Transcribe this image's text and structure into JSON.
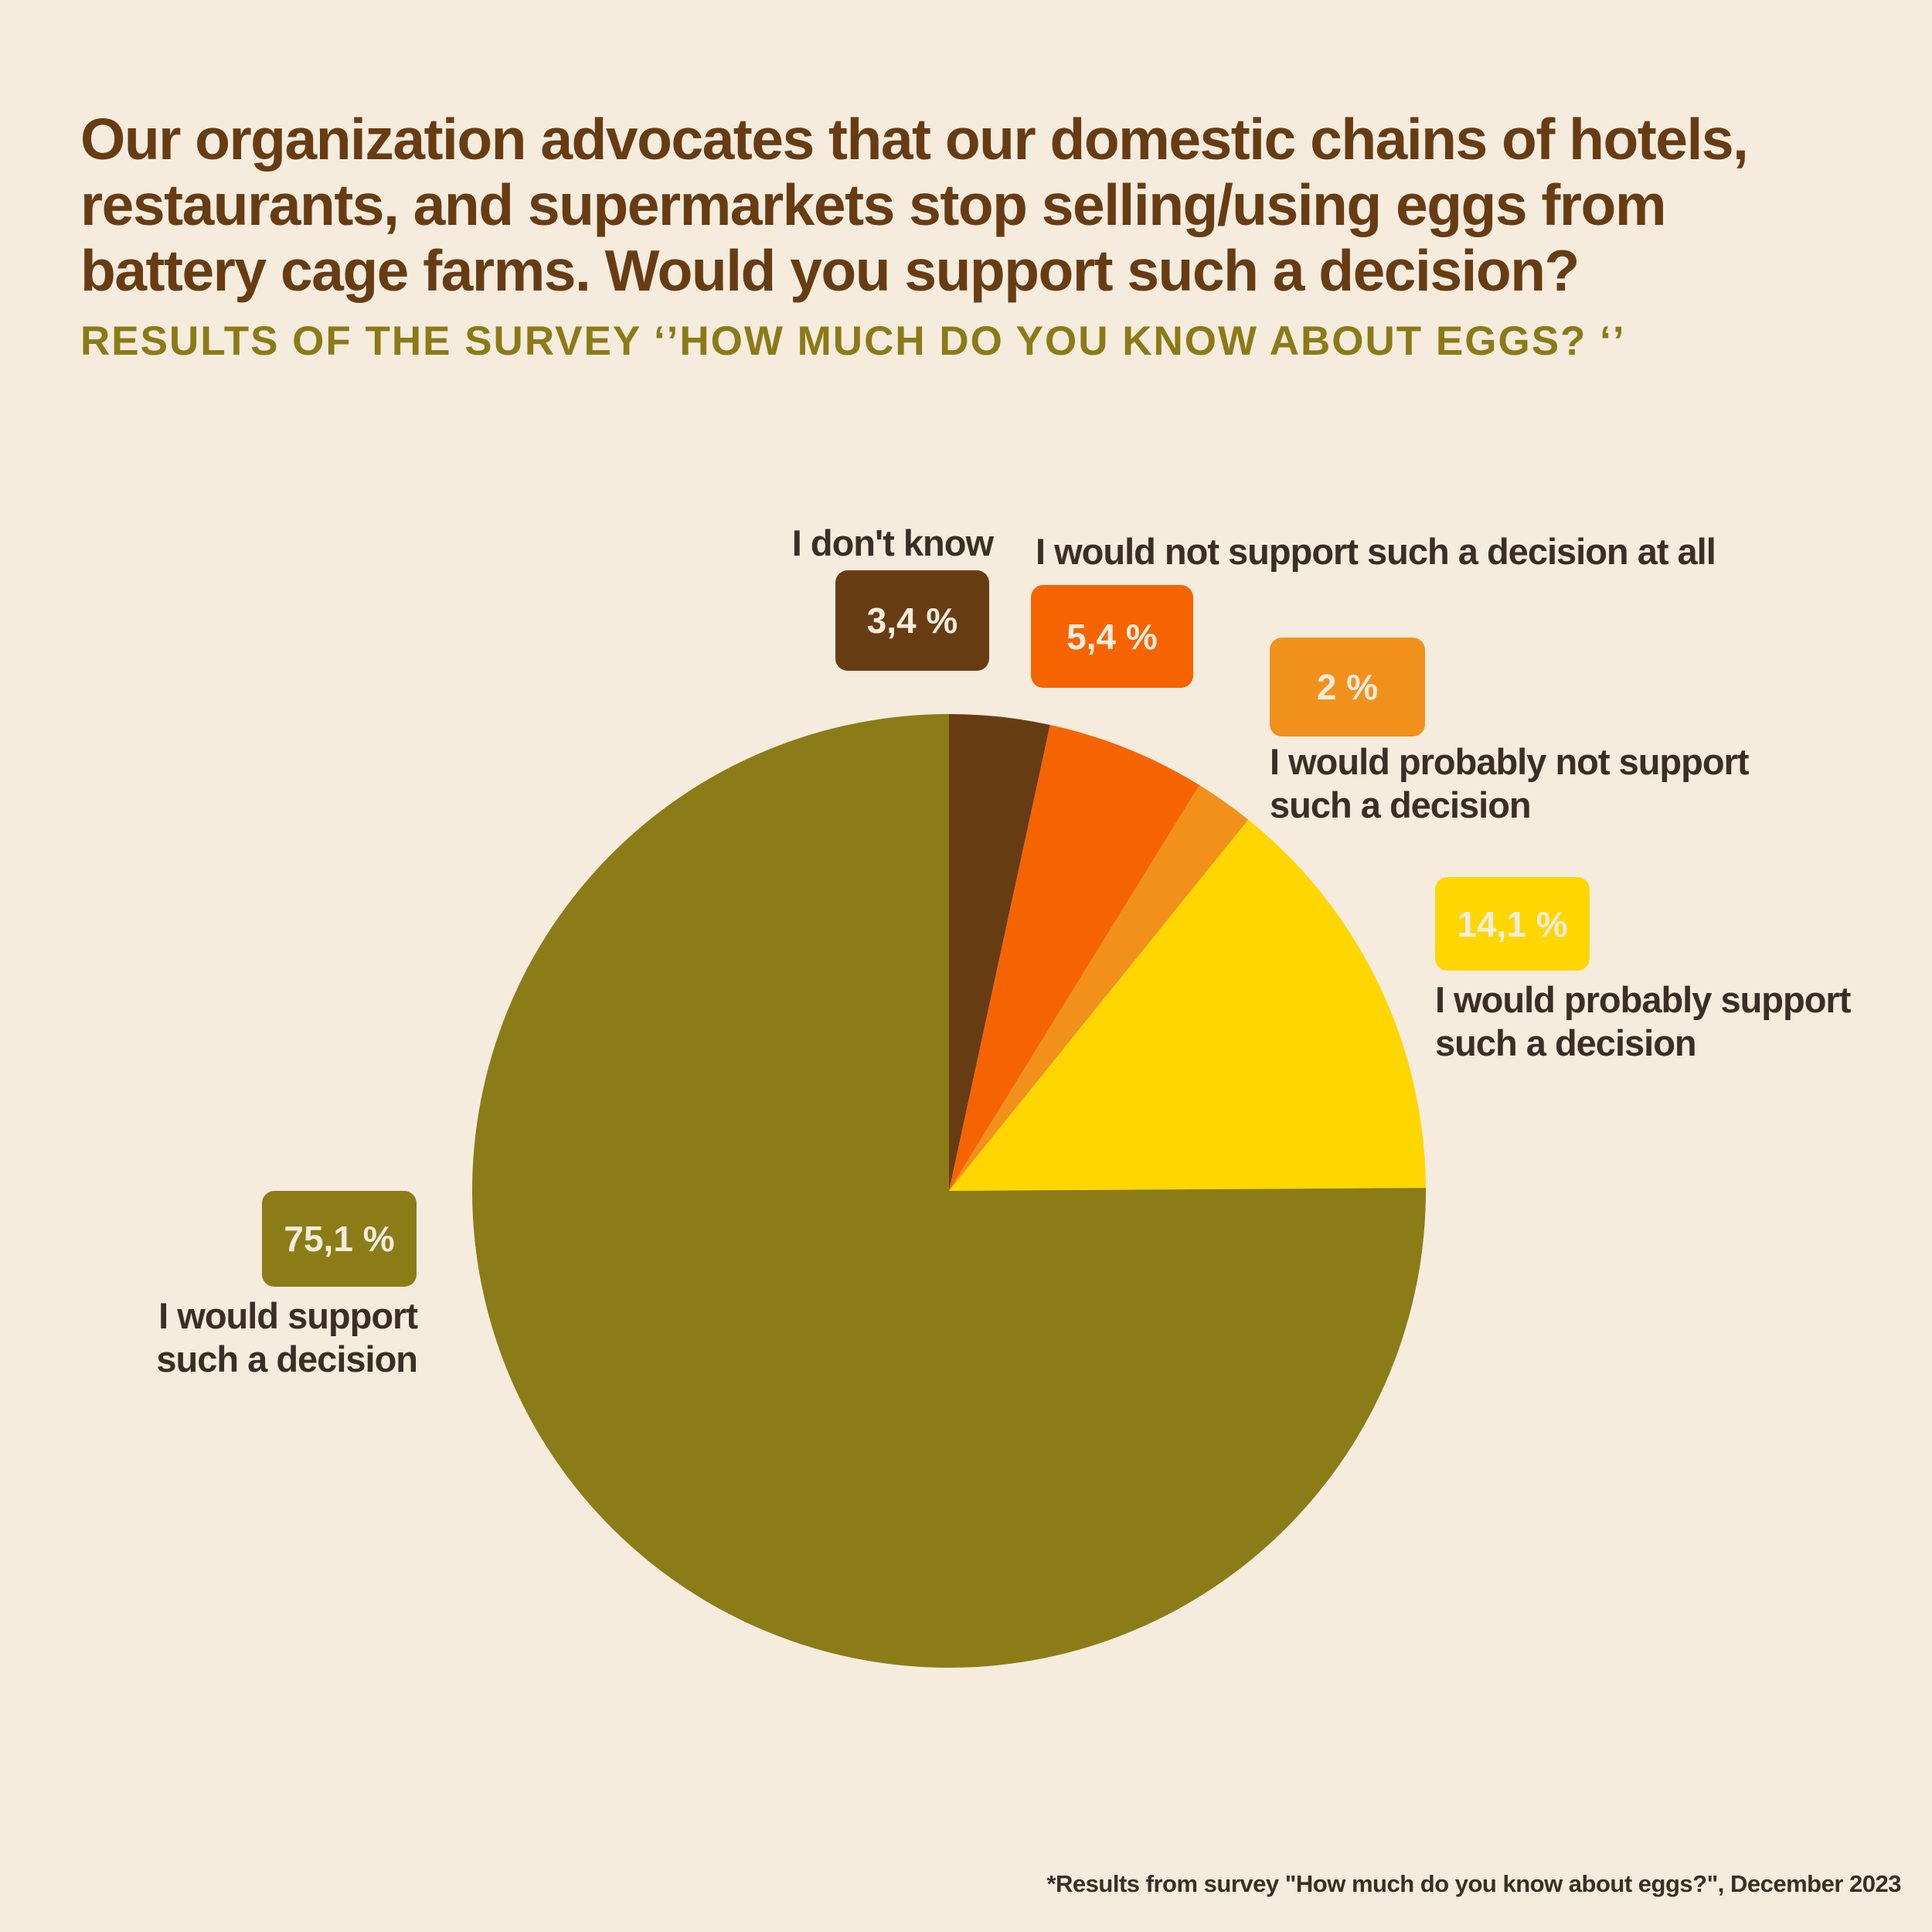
{
  "header": {
    "title": "Our organization advocates that our domestic chains of hotels, restaurants, and supermarkets stop selling/using eggs from battery cage farms. Would you support such a decision?",
    "subtitle": "RESULTS OF THE SURVEY ‘’HOW MUCH DO YOU KNOW ABOUT EGGS? ‘’"
  },
  "chart_data": {
    "type": "pie",
    "slices": [
      {
        "label": "I don't know",
        "value": 3.4,
        "display": "3,4 %",
        "color": "#683c13"
      },
      {
        "label": "I would not support such a decision at all",
        "value": 5.4,
        "display": "5,4 %",
        "color": "#f56400"
      },
      {
        "label": "I would probably not support\nsuch a decision",
        "value": 2.0,
        "display": "2 %",
        "color": "#f1911c"
      },
      {
        "label": "I would probably support\nsuch a decision",
        "value": 14.1,
        "display": "14,1  %",
        "color": "#ffd600"
      },
      {
        "label": "I would support\nsuch a decision",
        "value": 75.1,
        "display": "75,1 %",
        "color": "#8b7c18"
      }
    ]
  },
  "footnote": "*Results from survey  \"How much do you know about eggs?\", December 2023"
}
